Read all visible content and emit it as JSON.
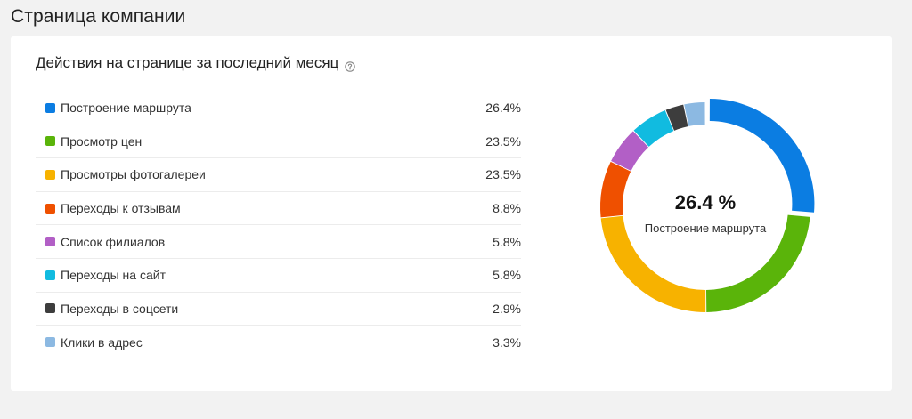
{
  "page": {
    "title": "Страница компании"
  },
  "card": {
    "title": "Действия на странице за последний месяц",
    "help_icon": "question-circle-icon"
  },
  "chart_data": {
    "type": "pie",
    "title": "Действия на странице за последний месяц",
    "donut": true,
    "highlighted_index": 0,
    "center": {
      "value": "26.4 %",
      "label": "Построение маршрута"
    },
    "categories": [
      "Построение маршрута",
      "Просмотр цен",
      "Просмотры фотогалереи",
      "Переходы к отзывам",
      "Список филиалов",
      "Переходы на сайт",
      "Переходы в соцсети",
      "Клики в адрес"
    ],
    "values": [
      26.4,
      23.5,
      23.5,
      8.8,
      5.8,
      5.8,
      2.9,
      3.3
    ],
    "value_labels": [
      "26.4%",
      "23.5%",
      "23.5%",
      "8.8%",
      "5.8%",
      "5.8%",
      "2.9%",
      "3.3%"
    ],
    "colors": [
      "#0b7de2",
      "#5ab40a",
      "#f7b200",
      "#ef5000",
      "#b25fc6",
      "#11bbe0",
      "#3d3d3d",
      "#8cb9e2"
    ],
    "legend_position": "left"
  }
}
